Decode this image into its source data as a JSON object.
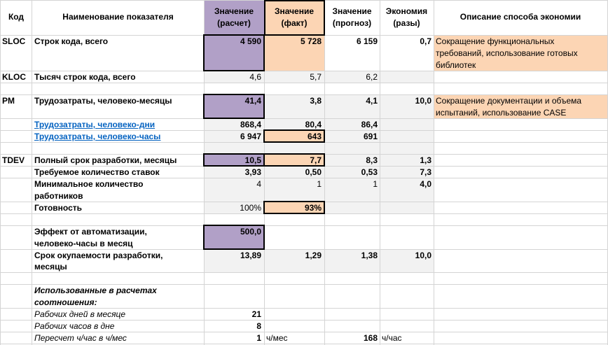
{
  "header": {
    "code": "Код",
    "name": "Наименование показателя",
    "calc": [
      "Значение",
      "(расчет)"
    ],
    "fact": [
      "Значение",
      "(факт)"
    ],
    "forecast": [
      "Значение",
      "(прогноз)"
    ],
    "savings": [
      "Экономия",
      "(разы)"
    ],
    "desc": "Описание способа экономии"
  },
  "rows": {
    "sloc": {
      "code": "SLOC",
      "name": "Строк кода, всего",
      "calc": "4 590",
      "fact": "5 728",
      "forecast": "6 159",
      "savings": "0,7",
      "desc": [
        "Сокращение функциональных",
        "требований, использование готовых",
        "библиотек"
      ]
    },
    "kloc": {
      "code": "KLOC",
      "name": "Тысяч строк кода, всего",
      "calc": "4,6",
      "fact": "5,7",
      "forecast": "6,2"
    },
    "pm": {
      "code": "PM",
      "name": "Трудозатраты, человеко-месяцы",
      "calc": "41,4",
      "fact": "3,8",
      "forecast": "4,1",
      "savings": "10,0",
      "desc": [
        "Сокращение документации и объема",
        "испытаний, использование CASE"
      ]
    },
    "pd": {
      "name": "Трудозатраты, человеко-дни",
      "calc": "868,4",
      "fact": "80,4",
      "forecast": "86,4"
    },
    "ph": {
      "name": "Трудозатраты, человеко-часы",
      "calc": "6 947",
      "fact": "643",
      "forecast": "691"
    },
    "tdev": {
      "code": "TDEV",
      "name": "Полный срок разработки, месяцы",
      "calc": "10,5",
      "fact": "7,7",
      "forecast": "8,3",
      "savings": "1,3"
    },
    "staff": {
      "name": "Требуемое количество ставок",
      "calc": "3,93",
      "fact": "0,50",
      "forecast": "0,53",
      "savings": "7,3"
    },
    "minw": {
      "name": [
        "Минимальное количество",
        "работников"
      ],
      "calc": "4",
      "fact": "1",
      "forecast": "1",
      "savings": "4,0"
    },
    "ready": {
      "name": "Готовность",
      "calc": "100%",
      "fact": "93%"
    },
    "effect": {
      "name": [
        "Эффект от автоматизации,",
        "человеко-часы в месяц"
      ],
      "calc": "500,0"
    },
    "payback": {
      "name": [
        "Срок окупаемости разработки,",
        "месяцы"
      ],
      "calc": "13,89",
      "fact": "1,29",
      "forecast": "1,38",
      "savings": "10,0"
    }
  },
  "ratios": {
    "title": [
      "Использованные в расчетах",
      "соотношения:"
    ],
    "days": {
      "label": "Рабочих дней в месяце",
      "value": "21"
    },
    "hours": {
      "label": "Рабочих часов в дне",
      "value": "8"
    },
    "conv": {
      "label": "Пересчет ч/час в ч/мес",
      "value": "1",
      "unit1": "ч/мес",
      "value2": "168",
      "unit2": "ч/час"
    }
  },
  "colors": {
    "purple": "#b1a0c7",
    "peach": "#fcd5b4",
    "grid": "#d4d4d4",
    "link": "#0563c1"
  }
}
